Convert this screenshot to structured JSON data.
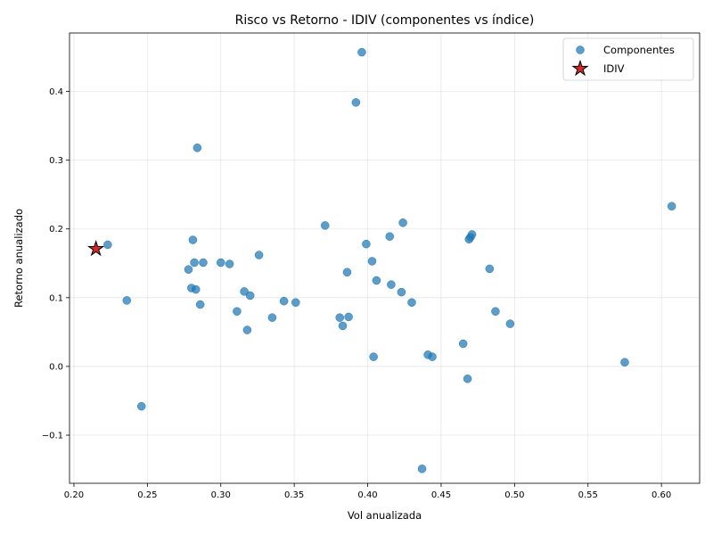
{
  "chart_data": {
    "type": "scatter",
    "title": "Risco vs Retorno - IDIV (componentes vs índice)",
    "xlabel": "Vol anualizada",
    "ylabel": "Retorno anualizado",
    "xlim": [
      0.197,
      0.626
    ],
    "ylim": [
      -0.17,
      0.485
    ],
    "xticks": [
      0.2,
      0.25,
      0.3,
      0.35,
      0.4,
      0.45,
      0.5,
      0.55,
      0.6
    ],
    "xtick_labels": [
      "0.20",
      "0.25",
      "0.30",
      "0.35",
      "0.40",
      "0.45",
      "0.50",
      "0.55",
      "0.60"
    ],
    "yticks": [
      -0.1,
      0.0,
      0.1,
      0.2,
      0.3,
      0.4
    ],
    "ytick_labels": [
      "−0.1",
      "0.0",
      "0.1",
      "0.2",
      "0.3",
      "0.4"
    ],
    "grid": true,
    "legend_position": "upper right",
    "series": [
      {
        "name": "Componentes",
        "marker": "circle",
        "color": "#1f77b4",
        "points": [
          [
            0.223,
            0.177
          ],
          [
            0.236,
            0.096
          ],
          [
            0.246,
            -0.058
          ],
          [
            0.278,
            0.141
          ],
          [
            0.28,
            0.114
          ],
          [
            0.281,
            0.184
          ],
          [
            0.282,
            0.151
          ],
          [
            0.283,
            0.112
          ],
          [
            0.284,
            0.318
          ],
          [
            0.286,
            0.09
          ],
          [
            0.288,
            0.151
          ],
          [
            0.3,
            0.151
          ],
          [
            0.306,
            0.149
          ],
          [
            0.311,
            0.08
          ],
          [
            0.316,
            0.109
          ],
          [
            0.318,
            0.053
          ],
          [
            0.32,
            0.103
          ],
          [
            0.326,
            0.162
          ],
          [
            0.335,
            0.071
          ],
          [
            0.343,
            0.095
          ],
          [
            0.351,
            0.093
          ],
          [
            0.371,
            0.205
          ],
          [
            0.381,
            0.071
          ],
          [
            0.383,
            0.059
          ],
          [
            0.386,
            0.137
          ],
          [
            0.387,
            0.072
          ],
          [
            0.392,
            0.384
          ],
          [
            0.396,
            0.457
          ],
          [
            0.399,
            0.178
          ],
          [
            0.403,
            0.153
          ],
          [
            0.404,
            0.014
          ],
          [
            0.406,
            0.125
          ],
          [
            0.415,
            0.189
          ],
          [
            0.416,
            0.119
          ],
          [
            0.423,
            0.108
          ],
          [
            0.424,
            0.209
          ],
          [
            0.43,
            0.093
          ],
          [
            0.437,
            -0.149
          ],
          [
            0.441,
            0.017
          ],
          [
            0.444,
            0.014
          ],
          [
            0.465,
            0.033
          ],
          [
            0.468,
            -0.018
          ],
          [
            0.469,
            0.185
          ],
          [
            0.47,
            0.188
          ],
          [
            0.471,
            0.192
          ],
          [
            0.483,
            0.142
          ],
          [
            0.487,
            0.08
          ],
          [
            0.497,
            0.062
          ],
          [
            0.575,
            0.006
          ],
          [
            0.607,
            0.233
          ]
        ]
      },
      {
        "name": "IDIV",
        "marker": "star",
        "color": "#d62728",
        "points": [
          [
            0.215,
            0.171
          ]
        ]
      }
    ]
  }
}
